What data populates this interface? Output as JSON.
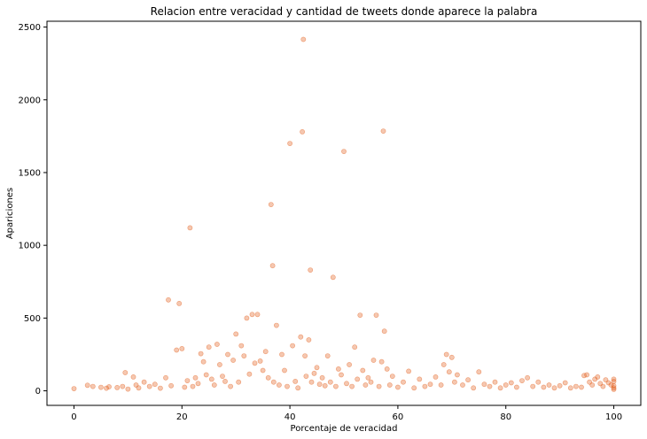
{
  "chart_data": {
    "type": "scatter",
    "title": "Relacion entre veracidad y cantidad de tweets donde aparece la palabra",
    "xlabel": "Porcentaje de veracidad",
    "ylabel": "Apariciones",
    "xlim": [
      -5,
      105
    ],
    "ylim": [
      -100,
      2540
    ],
    "x_ticks": [
      0,
      20,
      40,
      60,
      80,
      100
    ],
    "y_ticks": [
      0,
      500,
      1000,
      1500,
      2000,
      2500
    ],
    "point_color": "#e35f1c",
    "point_alpha": 0.35,
    "grid": false,
    "legend": "none",
    "series": [
      {
        "points": [
          [
            0,
            15
          ],
          [
            2.5,
            38
          ],
          [
            3.5,
            30
          ],
          [
            5,
            24
          ],
          [
            6,
            18
          ],
          [
            6.5,
            28
          ],
          [
            8,
            22
          ],
          [
            9,
            30
          ],
          [
            9.5,
            125
          ],
          [
            10,
            12
          ],
          [
            11,
            95
          ],
          [
            11.5,
            40
          ],
          [
            12,
            20
          ],
          [
            13,
            60
          ],
          [
            14,
            30
          ],
          [
            15,
            45
          ],
          [
            16,
            18
          ],
          [
            17,
            90
          ],
          [
            17.5,
            625
          ],
          [
            18,
            35
          ],
          [
            19,
            280
          ],
          [
            19.5,
            600
          ],
          [
            20,
            290
          ],
          [
            20.5,
            25
          ],
          [
            21,
            70
          ],
          [
            21.5,
            1120
          ],
          [
            22,
            30
          ],
          [
            22.5,
            90
          ],
          [
            23,
            50
          ],
          [
            23.5,
            255
          ],
          [
            24,
            200
          ],
          [
            24.5,
            110
          ],
          [
            25,
            300
          ],
          [
            25.5,
            80
          ],
          [
            26,
            40
          ],
          [
            26.5,
            320
          ],
          [
            27,
            180
          ],
          [
            27.5,
            100
          ],
          [
            28,
            65
          ],
          [
            28.5,
            250
          ],
          [
            29,
            30
          ],
          [
            29.5,
            210
          ],
          [
            30,
            390
          ],
          [
            30.5,
            60
          ],
          [
            31,
            310
          ],
          [
            31.5,
            240
          ],
          [
            32,
            500
          ],
          [
            32.5,
            115
          ],
          [
            33,
            525
          ],
          [
            33.5,
            190
          ],
          [
            34,
            525
          ],
          [
            34.5,
            205
          ],
          [
            35,
            140
          ],
          [
            35.5,
            270
          ],
          [
            36,
            90
          ],
          [
            36.5,
            1280
          ],
          [
            36.8,
            860
          ],
          [
            37,
            60
          ],
          [
            37.5,
            450
          ],
          [
            38,
            40
          ],
          [
            38.5,
            250
          ],
          [
            39,
            140
          ],
          [
            39.5,
            30
          ],
          [
            40,
            1700
          ],
          [
            40.5,
            310
          ],
          [
            41,
            65
          ],
          [
            41.5,
            20
          ],
          [
            42,
            370
          ],
          [
            42.3,
            1780
          ],
          [
            42.5,
            2415
          ],
          [
            42.8,
            240
          ],
          [
            43,
            100
          ],
          [
            43.5,
            350
          ],
          [
            43.8,
            830
          ],
          [
            44,
            60
          ],
          [
            44.5,
            120
          ],
          [
            45,
            160
          ],
          [
            45.5,
            45
          ],
          [
            46,
            90
          ],
          [
            46.5,
            35
          ],
          [
            47,
            240
          ],
          [
            47.5,
            60
          ],
          [
            48,
            780
          ],
          [
            48.5,
            30
          ],
          [
            49,
            150
          ],
          [
            49.5,
            110
          ],
          [
            50,
            1645
          ],
          [
            50.5,
            50
          ],
          [
            51,
            180
          ],
          [
            51.5,
            30
          ],
          [
            52,
            300
          ],
          [
            52.5,
            80
          ],
          [
            53,
            520
          ],
          [
            53.5,
            140
          ],
          [
            54,
            40
          ],
          [
            54.5,
            90
          ],
          [
            55,
            60
          ],
          [
            55.5,
            210
          ],
          [
            56,
            520
          ],
          [
            56.5,
            30
          ],
          [
            57,
            200
          ],
          [
            57.3,
            1785
          ],
          [
            57.5,
            410
          ],
          [
            58,
            150
          ],
          [
            58.5,
            40
          ],
          [
            59,
            100
          ],
          [
            60,
            25
          ],
          [
            61,
            60
          ],
          [
            62,
            135
          ],
          [
            63,
            20
          ],
          [
            64,
            80
          ],
          [
            65,
            30
          ],
          [
            66,
            45
          ],
          [
            67,
            95
          ],
          [
            68,
            40
          ],
          [
            68.5,
            180
          ],
          [
            69,
            250
          ],
          [
            69.5,
            130
          ],
          [
            70,
            230
          ],
          [
            70.5,
            60
          ],
          [
            71,
            110
          ],
          [
            72,
            40
          ],
          [
            73,
            75
          ],
          [
            74,
            20
          ],
          [
            75,
            130
          ],
          [
            76,
            45
          ],
          [
            77,
            30
          ],
          [
            78,
            60
          ],
          [
            79,
            20
          ],
          [
            80,
            40
          ],
          [
            81,
            55
          ],
          [
            82,
            25
          ],
          [
            83,
            70
          ],
          [
            84,
            90
          ],
          [
            85,
            30
          ],
          [
            86,
            60
          ],
          [
            87,
            25
          ],
          [
            88,
            40
          ],
          [
            89,
            20
          ],
          [
            90,
            35
          ],
          [
            91,
            55
          ],
          [
            92,
            20
          ],
          [
            93,
            30
          ],
          [
            94,
            25
          ],
          [
            94.5,
            105
          ],
          [
            95,
            110
          ],
          [
            95.5,
            60
          ],
          [
            96,
            40
          ],
          [
            96.5,
            80
          ],
          [
            97,
            95
          ],
          [
            97.5,
            50
          ],
          [
            98,
            30
          ],
          [
            98.5,
            75
          ],
          [
            99,
            55
          ],
          [
            99.5,
            40
          ],
          [
            100,
            65
          ],
          [
            100,
            20
          ],
          [
            100,
            35
          ],
          [
            100,
            10
          ],
          [
            100,
            80
          ]
        ]
      }
    ]
  }
}
